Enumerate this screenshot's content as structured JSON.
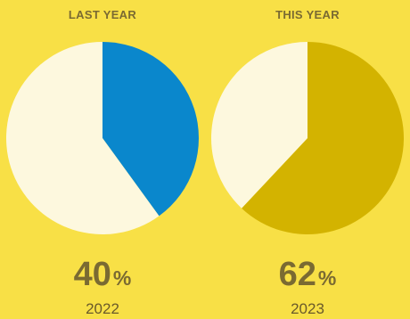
{
  "chart_data": [
    {
      "type": "pie",
      "title": "LAST YEAR",
      "slices": [
        {
          "value": 40,
          "color": "#0a87cc"
        },
        {
          "value": 60,
          "color": "#fdf8de"
        }
      ],
      "percent_label": "40",
      "percent_symbol": "%",
      "year": "2022",
      "title_color": "#7a6a32"
    },
    {
      "type": "pie",
      "title": "THIS YEAR",
      "slices": [
        {
          "value": 62,
          "color": "#d3b300"
        },
        {
          "value": 38,
          "color": "#fdf8de"
        }
      ],
      "percent_label": "62",
      "percent_symbol": "%",
      "year": "2023",
      "title_color": "#7a6a32"
    }
  ],
  "colors": {
    "background": "#f8e046",
    "percent_text": "#7a6a32",
    "year_text": "#6a5a2a"
  }
}
